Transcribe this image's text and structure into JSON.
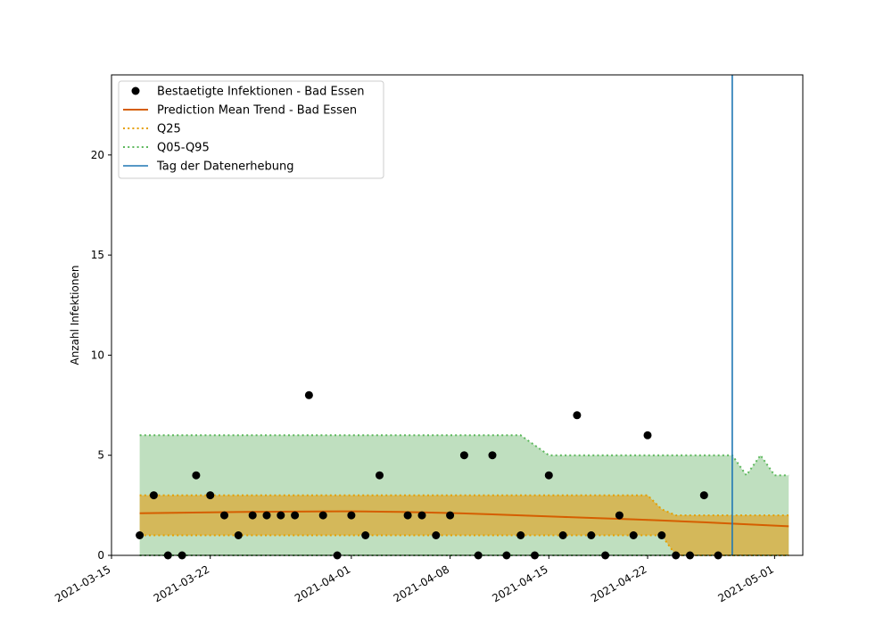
{
  "chart_data": {
    "type": "line",
    "ylabel": "Anzahl Infektionen",
    "xlabel": "",
    "xlim": [
      "2021-03-15",
      "2021-05-03"
    ],
    "ylim": [
      0,
      24
    ],
    "x_ticks": [
      "2021-03-15",
      "2021-03-22",
      "2021-04-01",
      "2021-04-08",
      "2021-04-15",
      "2021-04-22",
      "2021-05-01"
    ],
    "y_ticks": [
      0,
      5,
      10,
      15,
      20
    ],
    "grid": false,
    "legend_position": "upper-left",
    "colors": {
      "points": "#000000",
      "mean": "#d55e00",
      "q25": "#e69f00",
      "q05_q95": "#5cb85c",
      "band_outer": "#bfdfbf",
      "band_inner": "#d4b85a",
      "event": "#1f77b4"
    },
    "legend": [
      {
        "label": "Bestaetigte Infektionen - Bad Essen",
        "kind": "points"
      },
      {
        "label": "Prediction Mean Trend - Bad Essen",
        "kind": "mean"
      },
      {
        "label": "Q25",
        "kind": "q25"
      },
      {
        "label": "Q05-Q95",
        "kind": "q05_q95"
      },
      {
        "label": "Tag der Datenerhebung",
        "kind": "event"
      }
    ],
    "observed": {
      "name": "Bestaetigte Infektionen - Bad Essen",
      "x": [
        "2021-03-17",
        "2021-03-18",
        "2021-03-19",
        "2021-03-20",
        "2021-03-21",
        "2021-03-22",
        "2021-03-23",
        "2021-03-24",
        "2021-03-25",
        "2021-03-26",
        "2021-03-27",
        "2021-03-28",
        "2021-03-29",
        "2021-03-30",
        "2021-03-31",
        "2021-04-01",
        "2021-04-02",
        "2021-04-03",
        "2021-04-04",
        "2021-04-05",
        "2021-04-06",
        "2021-04-07",
        "2021-04-08",
        "2021-04-09",
        "2021-04-10",
        "2021-04-11",
        "2021-04-12",
        "2021-04-13",
        "2021-04-14",
        "2021-04-15",
        "2021-04-16",
        "2021-04-17",
        "2021-04-18",
        "2021-04-19",
        "2021-04-20",
        "2021-04-21",
        "2021-04-22",
        "2021-04-23",
        "2021-04-24",
        "2021-04-25",
        "2021-04-26",
        "2021-04-27"
      ],
      "y": [
        1,
        3,
        0,
        0,
        4,
        3,
        2,
        1,
        2,
        2,
        2,
        2,
        8,
        2,
        0,
        2,
        1,
        4,
        null,
        2,
        2,
        1,
        2,
        5,
        0,
        5,
        0,
        1,
        0,
        4,
        1,
        7,
        1,
        0,
        2,
        1,
        6,
        1,
        0,
        0,
        3,
        0
      ]
    },
    "mean": {
      "name": "Prediction Mean Trend - Bad Essen",
      "x": [
        "2021-03-17",
        "2021-03-22",
        "2021-03-27",
        "2021-04-01",
        "2021-04-06",
        "2021-04-11",
        "2021-04-16",
        "2021-04-21",
        "2021-04-26",
        "2021-05-02"
      ],
      "y": [
        2.1,
        2.15,
        2.18,
        2.2,
        2.15,
        2.05,
        1.92,
        1.8,
        1.65,
        1.45
      ]
    },
    "q25": {
      "name": "Q25",
      "x": [
        "2021-03-17",
        "2021-04-22",
        "2021-04-23",
        "2021-04-24",
        "2021-05-02"
      ],
      "upper": [
        3,
        3,
        2.3,
        2,
        2
      ],
      "lower": [
        1,
        1,
        1,
        0,
        0
      ]
    },
    "q05_q95": {
      "name": "Q05-Q95",
      "x": [
        "2021-03-17",
        "2021-04-13",
        "2021-04-15",
        "2021-04-28",
        "2021-04-29",
        "2021-04-30",
        "2021-05-01",
        "2021-05-02"
      ],
      "upper": [
        6,
        6,
        5,
        5,
        4,
        5,
        4,
        4
      ],
      "lower": [
        0,
        0,
        0,
        0,
        0,
        0,
        0,
        0
      ]
    },
    "event": {
      "name": "Tag der Datenerhebung",
      "x": "2021-04-28"
    }
  }
}
